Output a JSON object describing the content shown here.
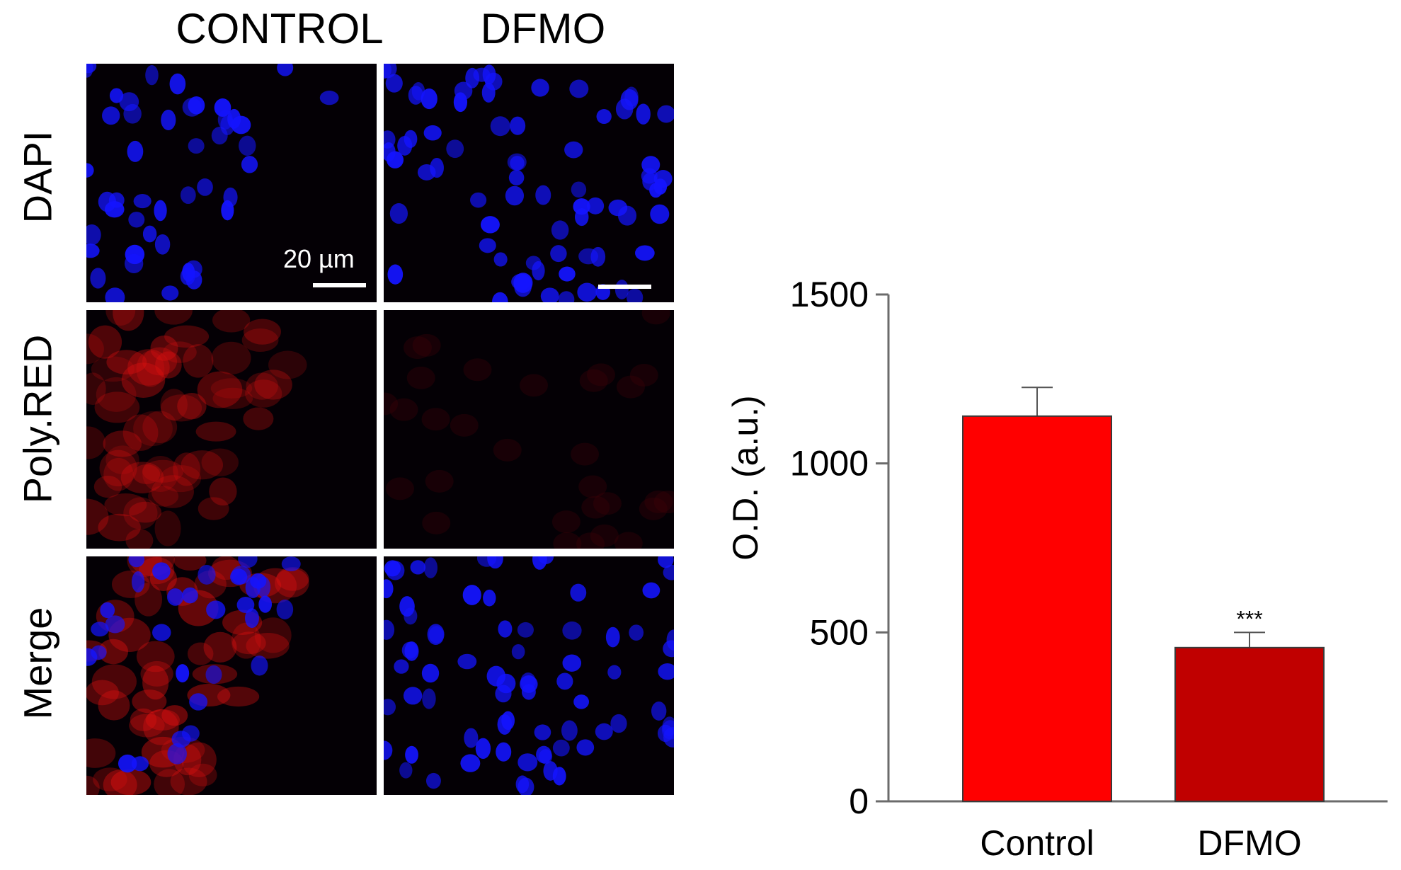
{
  "micrograph": {
    "columns": [
      "CONTROL",
      "DFMO"
    ],
    "rows": [
      "DAPI",
      "Poly.RED",
      "Merge"
    ],
    "scale_bar_label": "20 µm",
    "colors": {
      "nucleus": "#1414ff",
      "red_stain": "#e01010",
      "background": "#040005",
      "divider": "#ffffff"
    }
  },
  "chart_data": {
    "type": "bar",
    "categories": [
      "Control",
      "DFMO"
    ],
    "values": [
      1140,
      455
    ],
    "errors": [
      85,
      45
    ],
    "colors": [
      "#ff0000",
      "#c00000"
    ],
    "ylabel": "O.D. (a.u.)",
    "xlabel": "",
    "title": "",
    "ylim": [
      0,
      1500
    ],
    "yticks": [
      0,
      500,
      1000,
      1500
    ],
    "annotations": [
      {
        "category": "DFMO",
        "text": "***"
      }
    ],
    "grid": false
  }
}
